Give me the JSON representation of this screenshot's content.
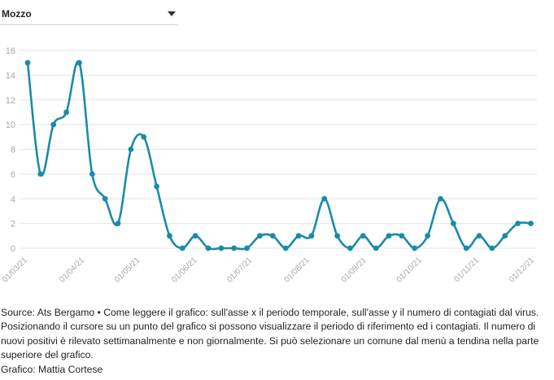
{
  "dropdown": {
    "selected": "Mozzo"
  },
  "colors": {
    "series": "#1a8ba8",
    "grid": "#e4e4e4",
    "tick_text": "#a8a8a8"
  },
  "footer": {
    "source": "Source: Ats Bergamo • Come leggere il grafico: sull'asse x il periodo temporale, sull'asse y il numero di contagiati dal virus. Posizionando il cursore su un punto del grafico si possono visualizzare il periodo di riferimento ed i contagiati. Il numero di nuovi positivi è rilevato settimanalmente e non giornalmente. Si può selezionare un comune dal menù a tendina nella parte superiore del grafico.",
    "credit": "Grafico: Mattia Cortese"
  },
  "chart_data": {
    "type": "line",
    "title": "",
    "xlabel": "",
    "ylabel": "",
    "x_ticks": [
      "01/03/21",
      "01/04/21",
      "01/05/21",
      "01/06/21",
      "01/07/21",
      "01/08/21",
      "01/09/21",
      "01/10/21",
      "01/11/21",
      "01/12/21"
    ],
    "x_range": [
      "2021-03-01",
      "2021-12-01"
    ],
    "ylim": [
      0,
      16
    ],
    "y_ticks": [
      0,
      2,
      4,
      6,
      8,
      10,
      12,
      14,
      16
    ],
    "grid": true,
    "series": [
      {
        "x": [
          "2021-03-01",
          "2021-03-08",
          "2021-03-15",
          "2021-03-22",
          "2021-03-29",
          "2021-04-05",
          "2021-04-12",
          "2021-04-19",
          "2021-04-26",
          "2021-05-03",
          "2021-05-10",
          "2021-05-17",
          "2021-05-24",
          "2021-05-31",
          "2021-06-07",
          "2021-06-14",
          "2021-06-21",
          "2021-06-28",
          "2021-07-05",
          "2021-07-12",
          "2021-07-19",
          "2021-07-26",
          "2021-08-02",
          "2021-08-09",
          "2021-08-16",
          "2021-08-23",
          "2021-08-30",
          "2021-09-06",
          "2021-09-13",
          "2021-09-20",
          "2021-09-27",
          "2021-10-04",
          "2021-10-11",
          "2021-10-18",
          "2021-10-25",
          "2021-11-01",
          "2021-11-08",
          "2021-11-15",
          "2021-11-22",
          "2021-11-29"
        ],
        "values": [
          15,
          6,
          10,
          11,
          15,
          6,
          4,
          2,
          8,
          9,
          5,
          1,
          0,
          1,
          0,
          0,
          0,
          0,
          1,
          1,
          0,
          1,
          1,
          4,
          1,
          0,
          1,
          0,
          1,
          1,
          0,
          1,
          4,
          2,
          0,
          1,
          0,
          1,
          2,
          2
        ]
      }
    ]
  }
}
